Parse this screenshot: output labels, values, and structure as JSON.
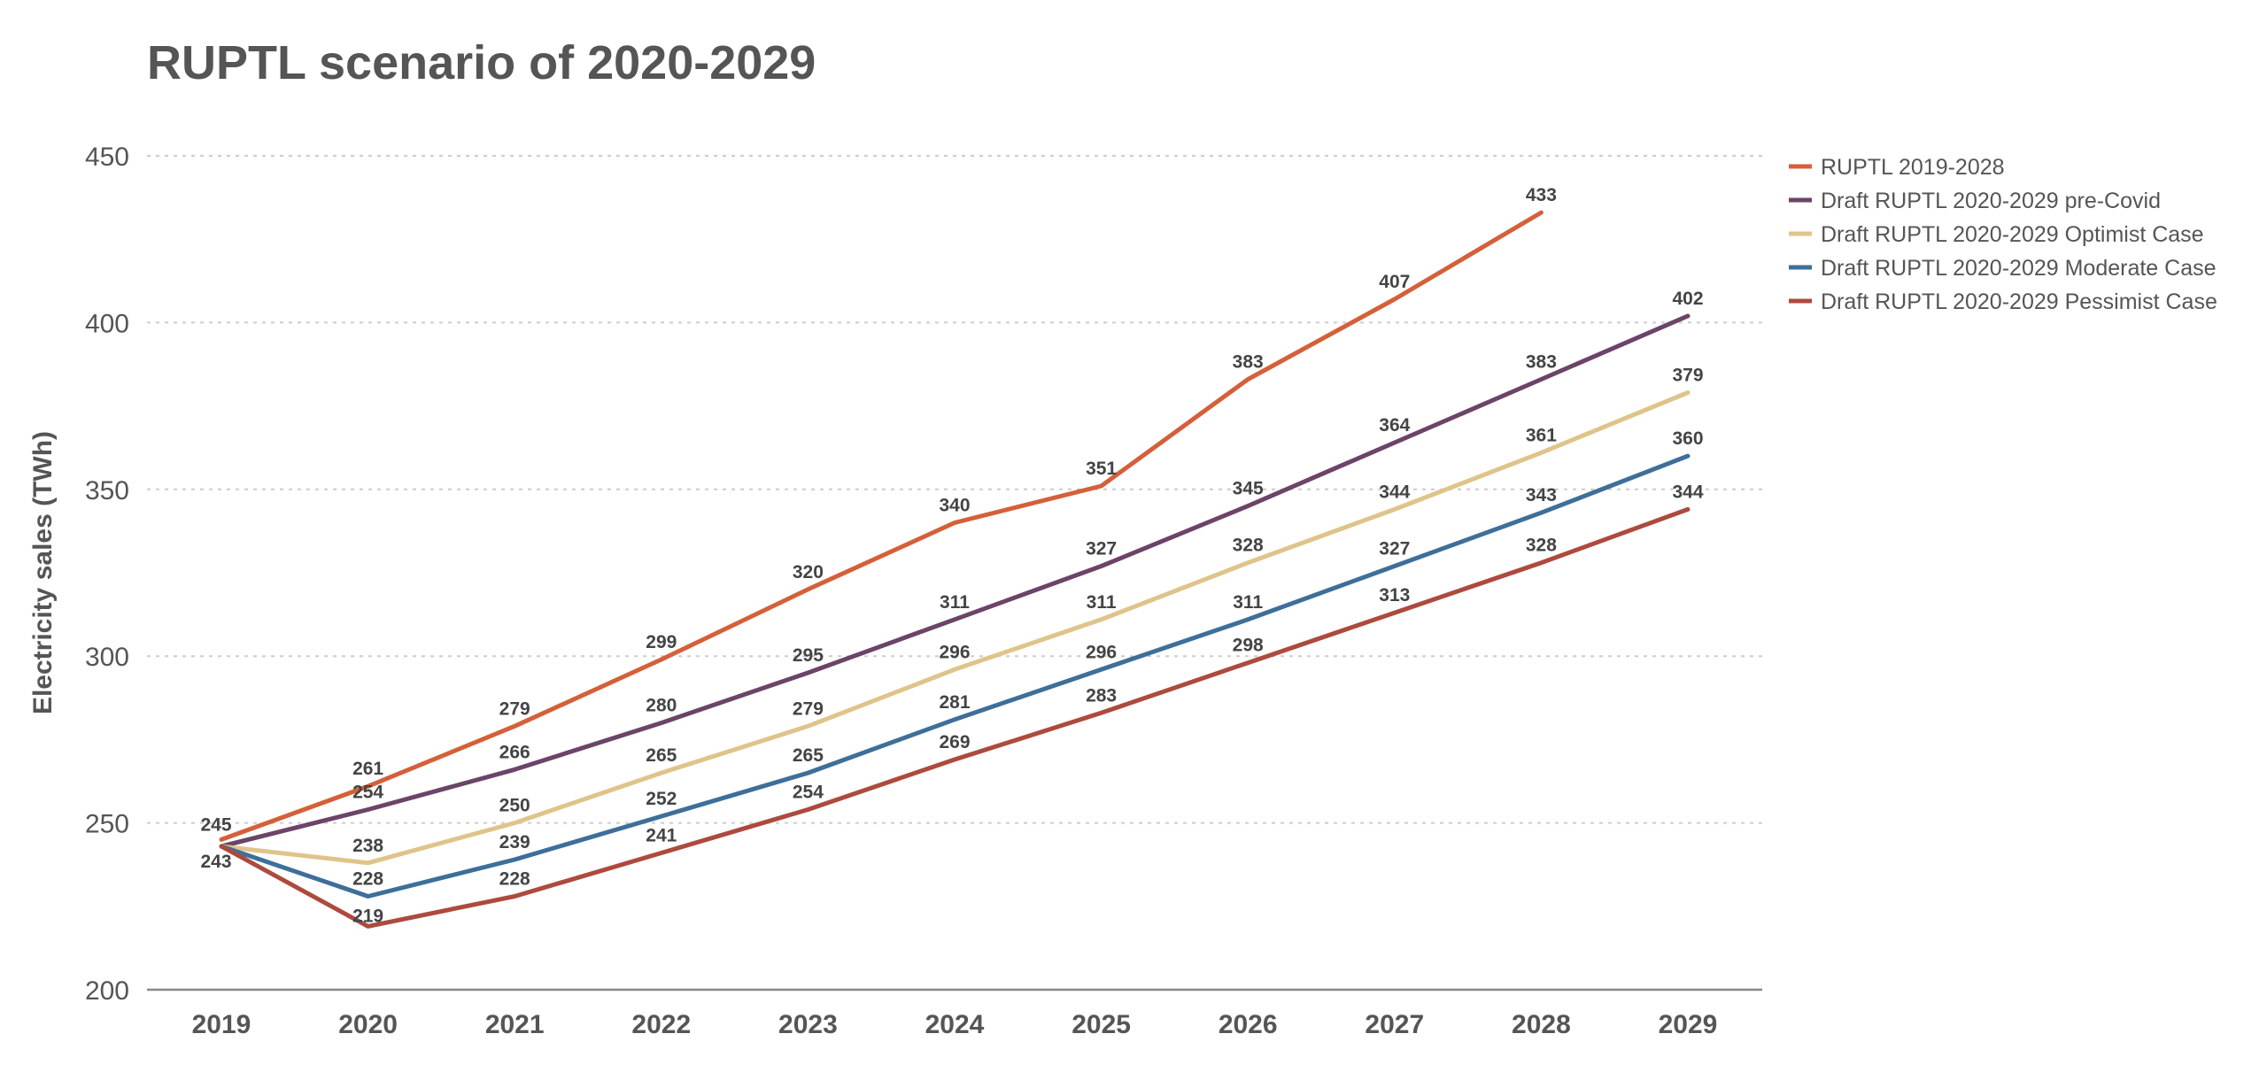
{
  "chart_data": {
    "type": "line",
    "title": "RUPTL scenario of 2020-2029",
    "xlabel": "",
    "ylabel": "Electricity sales (TWh)",
    "x": [
      "2019",
      "2020",
      "2021",
      "2022",
      "2023",
      "2024",
      "2025",
      "2026",
      "2027",
      "2028",
      "2029"
    ],
    "ylim": [
      200,
      450
    ],
    "yticks": [
      200,
      250,
      300,
      350,
      400,
      450
    ],
    "grid": "horizontal dotted",
    "legend_position": "right",
    "series": [
      {
        "name": "RUPTL 2019-2028",
        "color": "#d4603a",
        "values": [
          245,
          261,
          279,
          299,
          320,
          340,
          351,
          383,
          407,
          433,
          null
        ]
      },
      {
        "name": "Draft RUPTL 2020-2029 pre-Covid",
        "color": "#6b4468",
        "values": [
          243,
          254,
          266,
          280,
          295,
          311,
          327,
          345,
          364,
          383,
          402
        ]
      },
      {
        "name": "Draft RUPTL 2020-2029 Optimist Case",
        "color": "#dfc48a",
        "values": [
          243,
          238,
          250,
          265,
          279,
          296,
          311,
          328,
          344,
          361,
          379
        ]
      },
      {
        "name": "Draft RUPTL 2020-2029 Moderate Case",
        "color": "#3d6f9a",
        "values": [
          243,
          228,
          239,
          252,
          265,
          281,
          296,
          311,
          327,
          343,
          360
        ]
      },
      {
        "name": "Draft RUPTL 2020-2029 Pessimist Case",
        "color": "#ad4a3e",
        "values": [
          243,
          219,
          228,
          241,
          254,
          269,
          283,
          298,
          313,
          328,
          344
        ]
      }
    ],
    "data_labels": [
      {
        "text": "245",
        "series": 0,
        "index": 0
      },
      {
        "text": "261",
        "series": 0,
        "index": 1
      },
      {
        "text": "279",
        "series": 0,
        "index": 2
      },
      {
        "text": "299",
        "series": 0,
        "index": 3
      },
      {
        "text": "320",
        "series": 0,
        "index": 4
      },
      {
        "text": "340",
        "series": 0,
        "index": 5
      },
      {
        "text": "351",
        "series": 0,
        "index": 6
      },
      {
        "text": "383",
        "series": 0,
        "index": 7
      },
      {
        "text": "407",
        "series": 0,
        "index": 8
      },
      {
        "text": "433",
        "series": 0,
        "index": 9
      },
      {
        "text": "243",
        "series": 1,
        "index": 0
      },
      {
        "text": "254",
        "series": 1,
        "index": 1
      },
      {
        "text": "266",
        "series": 1,
        "index": 2
      },
      {
        "text": "280",
        "series": 1,
        "index": 3
      },
      {
        "text": "295",
        "series": 1,
        "index": 4
      },
      {
        "text": "311",
        "series": 1,
        "index": 5
      },
      {
        "text": "327",
        "series": 1,
        "index": 6
      },
      {
        "text": "345",
        "series": 1,
        "index": 7
      },
      {
        "text": "364",
        "series": 1,
        "index": 8
      },
      {
        "text": "383",
        "series": 1,
        "index": 9
      },
      {
        "text": "402",
        "series": 1,
        "index": 10
      },
      {
        "text": "238",
        "series": 2,
        "index": 1
      },
      {
        "text": "250",
        "series": 2,
        "index": 2
      },
      {
        "text": "265",
        "series": 2,
        "index": 3
      },
      {
        "text": "279",
        "series": 2,
        "index": 4
      },
      {
        "text": "296",
        "series": 2,
        "index": 5
      },
      {
        "text": "311",
        "series": 2,
        "index": 6
      },
      {
        "text": "328",
        "series": 2,
        "index": 7
      },
      {
        "text": "344",
        "series": 2,
        "index": 8
      },
      {
        "text": "361",
        "series": 2,
        "index": 9
      },
      {
        "text": "379",
        "series": 2,
        "index": 10
      },
      {
        "text": "228",
        "series": 3,
        "index": 1
      },
      {
        "text": "239",
        "series": 3,
        "index": 2
      },
      {
        "text": "252",
        "series": 3,
        "index": 3
      },
      {
        "text": "265",
        "series": 3,
        "index": 4
      },
      {
        "text": "281",
        "series": 3,
        "index": 5
      },
      {
        "text": "296",
        "series": 3,
        "index": 6
      },
      {
        "text": "311",
        "series": 3,
        "index": 7
      },
      {
        "text": "327",
        "series": 3,
        "index": 8
      },
      {
        "text": "343",
        "series": 3,
        "index": 9
      },
      {
        "text": "360",
        "series": 3,
        "index": 10
      },
      {
        "text": "219",
        "series": 4,
        "index": 1
      },
      {
        "text": "228",
        "series": 4,
        "index": 2
      },
      {
        "text": "241",
        "series": 4,
        "index": 3
      },
      {
        "text": "254",
        "series": 4,
        "index": 4
      },
      {
        "text": "269",
        "series": 4,
        "index": 5
      },
      {
        "text": "283",
        "series": 4,
        "index": 6
      },
      {
        "text": "298",
        "series": 4,
        "index": 7
      },
      {
        "text": "313",
        "series": 4,
        "index": 8
      },
      {
        "text": "328",
        "series": 4,
        "index": 9
      },
      {
        "text": "344",
        "series": 4,
        "index": 10
      }
    ]
  },
  "colors": {
    "text": "#555555",
    "gridline": "#cccccc",
    "axis": "#888888"
  }
}
